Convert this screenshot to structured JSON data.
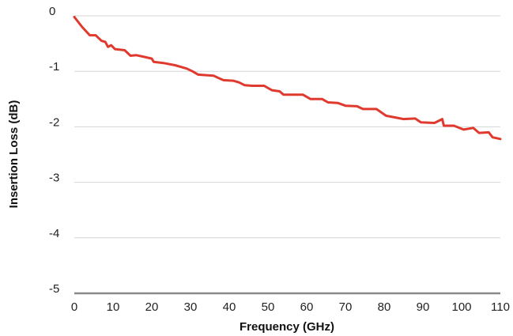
{
  "chart_data": {
    "type": "line",
    "title": "",
    "xlabel": "Frequency (GHz)",
    "ylabel": "Insertion Loss (dB)",
    "xlim": [
      0,
      110
    ],
    "ylim": [
      -5,
      0
    ],
    "x_ticks": [
      0,
      10,
      20,
      30,
      40,
      50,
      60,
      70,
      80,
      90,
      100,
      110
    ],
    "y_ticks": [
      0,
      -1,
      -2,
      -3,
      -4,
      -5
    ],
    "x_tick_labels": [
      "0",
      "10",
      "20",
      "30",
      "40",
      "50",
      "60",
      "70",
      "80",
      "90",
      "100",
      "110"
    ],
    "y_tick_labels": [
      "0",
      "-1",
      "-2",
      "-3",
      "-4",
      "-5"
    ],
    "grid": "horizontal",
    "legend": "none",
    "series": [
      {
        "color": "#e03a2f",
        "points": [
          [
            0,
            -0.02
          ],
          [
            2,
            -0.2
          ],
          [
            4,
            -0.35
          ],
          [
            5.5,
            -0.35
          ],
          [
            7,
            -0.45
          ],
          [
            8,
            -0.47
          ],
          [
            8.7,
            -0.56
          ],
          [
            9.5,
            -0.53
          ],
          [
            10.5,
            -0.6
          ],
          [
            13,
            -0.62
          ],
          [
            14.5,
            -0.72
          ],
          [
            16,
            -0.71
          ],
          [
            18,
            -0.74
          ],
          [
            20,
            -0.77
          ],
          [
            20.5,
            -0.83
          ],
          [
            23,
            -0.85
          ],
          [
            26,
            -0.89
          ],
          [
            29,
            -0.95
          ],
          [
            30.5,
            -1.0
          ],
          [
            32,
            -1.06
          ],
          [
            36,
            -1.08
          ],
          [
            37.5,
            -1.13
          ],
          [
            38.5,
            -1.16
          ],
          [
            41,
            -1.17
          ],
          [
            42.5,
            -1.2
          ],
          [
            44,
            -1.25
          ],
          [
            46,
            -1.26
          ],
          [
            49,
            -1.26
          ],
          [
            51,
            -1.34
          ],
          [
            53,
            -1.36
          ],
          [
            54,
            -1.42
          ],
          [
            59,
            -1.42
          ],
          [
            61,
            -1.5
          ],
          [
            64,
            -1.5
          ],
          [
            65.5,
            -1.56
          ],
          [
            68,
            -1.57
          ],
          [
            70,
            -1.62
          ],
          [
            73,
            -1.63
          ],
          [
            74.5,
            -1.68
          ],
          [
            78,
            -1.68
          ],
          [
            80.5,
            -1.8
          ],
          [
            85,
            -1.86
          ],
          [
            88,
            -1.85
          ],
          [
            89.5,
            -1.92
          ],
          [
            93,
            -1.93
          ],
          [
            95,
            -1.86
          ],
          [
            95.4,
            -1.98
          ],
          [
            98,
            -1.98
          ],
          [
            100.5,
            -2.05
          ],
          [
            103,
            -2.02
          ],
          [
            104.5,
            -2.11
          ],
          [
            107,
            -2.1
          ],
          [
            108,
            -2.19
          ],
          [
            110,
            -2.22
          ]
        ]
      }
    ]
  }
}
